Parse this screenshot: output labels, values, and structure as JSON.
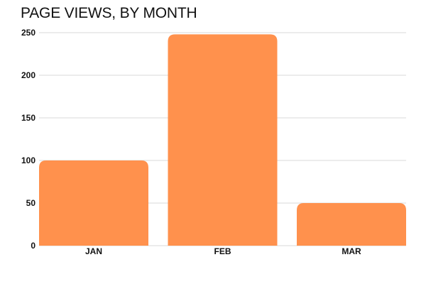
{
  "chart_data": {
    "type": "bar",
    "title": "PAGE VIEWS, BY MONTH",
    "xlabel": "",
    "ylabel": "",
    "categories": [
      "JAN",
      "FEB",
      "MAR"
    ],
    "values": [
      100,
      248,
      50
    ],
    "ylim": [
      0,
      250
    ],
    "yticks": [
      0,
      50,
      100,
      150,
      200,
      250
    ],
    "grid": true,
    "legend": "none",
    "colors": {
      "bar": "#ff914d",
      "grid": "#d9d9d9",
      "text": "#111111"
    }
  }
}
